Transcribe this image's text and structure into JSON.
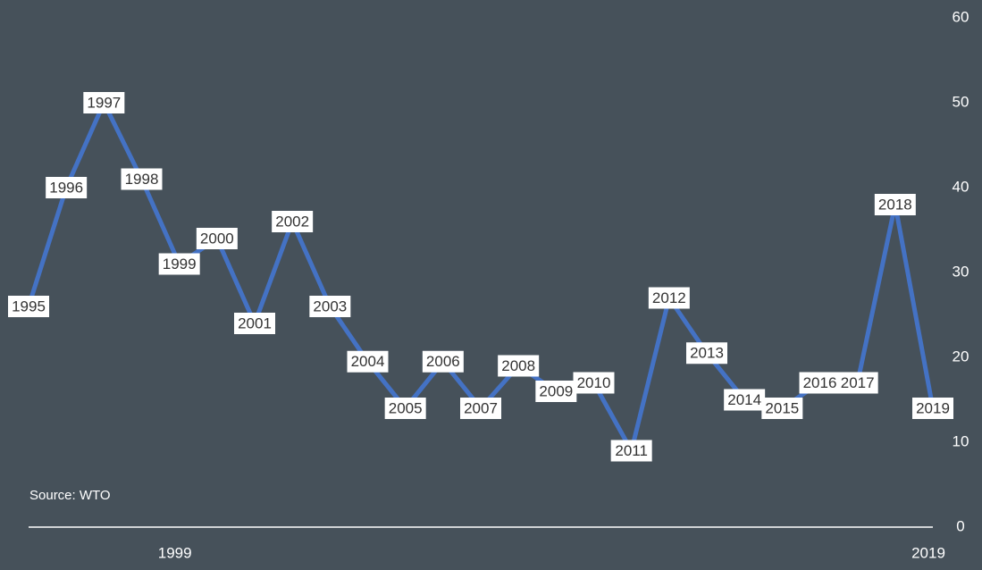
{
  "chart_data": {
    "type": "line",
    "x": [
      1995,
      1996,
      1997,
      1998,
      1999,
      2000,
      2001,
      2002,
      2003,
      2004,
      2005,
      2006,
      2007,
      2008,
      2009,
      2010,
      2011,
      2012,
      2013,
      2014,
      2015,
      2016,
      2017,
      2018,
      2019
    ],
    "series": [
      {
        "color": "#4472c4",
        "values": [
          26,
          40,
          50,
          41,
          31,
          34,
          24,
          36,
          26,
          19.5,
          14,
          19.5,
          14,
          19,
          16,
          17,
          9,
          27,
          20.5,
          15,
          14,
          17,
          17,
          38,
          14
        ]
      }
    ],
    "xlim": [
      1995,
      2019
    ],
    "xticks": [
      1999,
      2019
    ],
    "ylim": [
      0,
      60
    ],
    "yticks": [
      0,
      10,
      20,
      30,
      40,
      50,
      60
    ],
    "grid": false,
    "annotation": "Source: WTO"
  }
}
